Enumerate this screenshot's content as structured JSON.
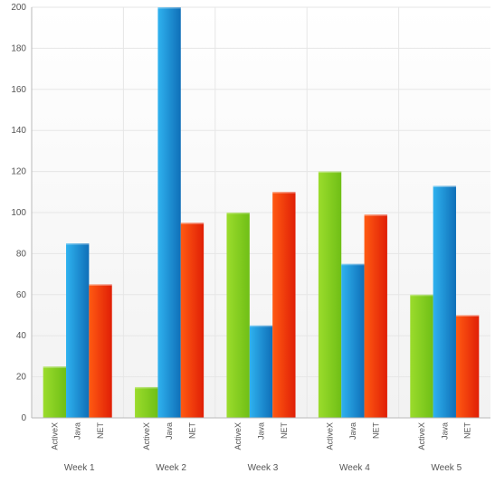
{
  "chart_data": {
    "type": "bar",
    "title": "",
    "xlabel": "",
    "ylabel": "",
    "ylim": [
      0,
      200
    ],
    "yticks": [
      0,
      20,
      40,
      60,
      80,
      100,
      120,
      140,
      160,
      180,
      200
    ],
    "categories": [
      "Week 1",
      "Week 2",
      "Week 3",
      "Week 4",
      "Week 5"
    ],
    "series": [
      {
        "name": "ActiveX",
        "values": [
          25,
          15,
          100,
          120,
          60
        ]
      },
      {
        "name": "Java",
        "values": [
          85,
          200,
          45,
          75,
          113
        ]
      },
      {
        "name": "NET",
        "values": [
          65,
          95,
          110,
          99,
          50
        ]
      }
    ],
    "grid": true,
    "legend": "none",
    "colors": {
      "ActiveX": [
        "#9bdc2c",
        "#6fbf16"
      ],
      "Java": [
        "#2fb2ef",
        "#0f6fb8"
      ],
      "NET": [
        "#ff5a12",
        "#e01f06"
      ],
      "grid": "#e6e6e6",
      "axis": "#b9b9b9",
      "label": "#555555"
    }
  }
}
